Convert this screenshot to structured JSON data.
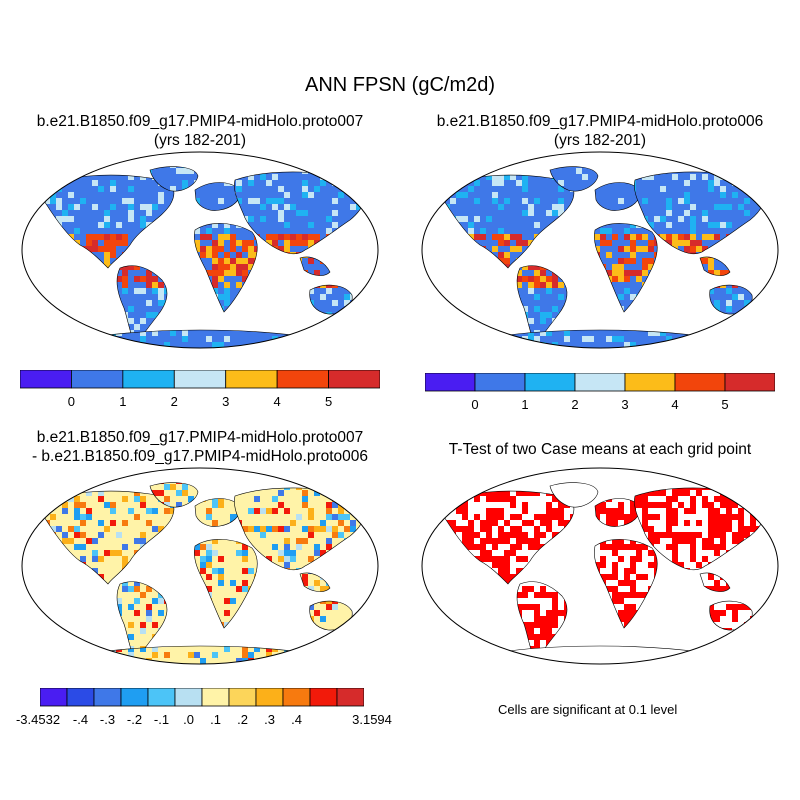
{
  "main_title": "ANN FPSN (gC/m2d)",
  "panels": {
    "p1": {
      "title_line1": "b.e21.B1850.f09_g17.PMIP4-midHolo.proto007",
      "title_line2": "(yrs 182-201)"
    },
    "p2": {
      "title_line1": "b.e21.B1850.f09_g17.PMIP4-midHolo.proto006",
      "title_line2": "(yrs 182-201)"
    },
    "p3": {
      "title_line1": "b.e21.B1850.f09_g17.PMIP4-midHolo.proto007",
      "title_line2": "- b.e21.B1850.f09_g17.PMIP4-midHolo.proto006"
    },
    "p4": {
      "title_line1": "T-Test of two Case means at each grid point",
      "note": "Cells are significant at 0.1 level"
    }
  },
  "colorbar_abs": {
    "colors": [
      "#4a1df2",
      "#3f78e8",
      "#1fb2f2",
      "#c6e6f5",
      "#fcbc19",
      "#f2450c",
      "#d62b2b"
    ],
    "labels": [
      "0",
      "1",
      "2",
      "3",
      "4",
      "5"
    ]
  },
  "colorbar_diff": {
    "colors": [
      "#4a1df2",
      "#2b4be6",
      "#3f78e8",
      "#1f9ef2",
      "#4cc4f7",
      "#b8e0f2",
      "#fff3a8",
      "#fcd55a",
      "#fcb019",
      "#f77a0f",
      "#f21a0a",
      "#d62b2b"
    ],
    "labels": [
      "-3.4532",
      "-.4",
      "-.3",
      "-.2",
      "-.1",
      ".0",
      ".1",
      ".2",
      ".3",
      ".4",
      "3.1594"
    ]
  },
  "colors": {
    "ocean": "#ffffff",
    "land_base": "#3f78e8",
    "diff_base": "#fff3a8",
    "significant": "#ff0000"
  }
}
